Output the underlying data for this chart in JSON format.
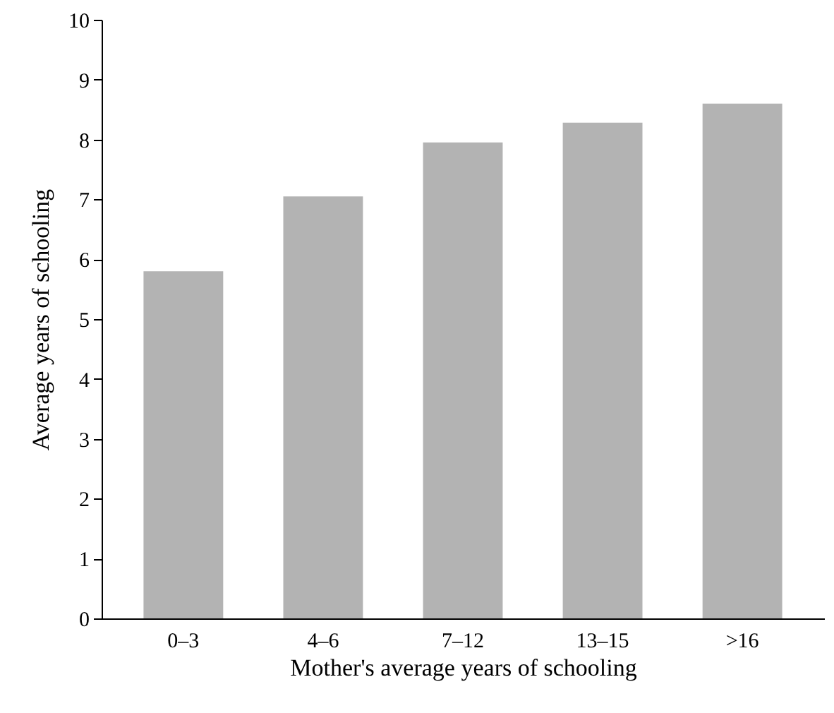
{
  "chart_data": {
    "type": "bar",
    "xlabel": "Mother's average years of schooling",
    "ylabel": "Average years of schooling",
    "categories": [
      "0–3",
      "4–6",
      "7–12",
      "13–15",
      ">16"
    ],
    "values": [
      5.8,
      7.05,
      7.95,
      8.28,
      8.6
    ],
    "color": "#b3b3b3",
    "ylim": [
      0,
      10
    ],
    "yticks": [
      0,
      1,
      2,
      3,
      4,
      5,
      6,
      7,
      8,
      9,
      10
    ],
    "grid": false
  }
}
